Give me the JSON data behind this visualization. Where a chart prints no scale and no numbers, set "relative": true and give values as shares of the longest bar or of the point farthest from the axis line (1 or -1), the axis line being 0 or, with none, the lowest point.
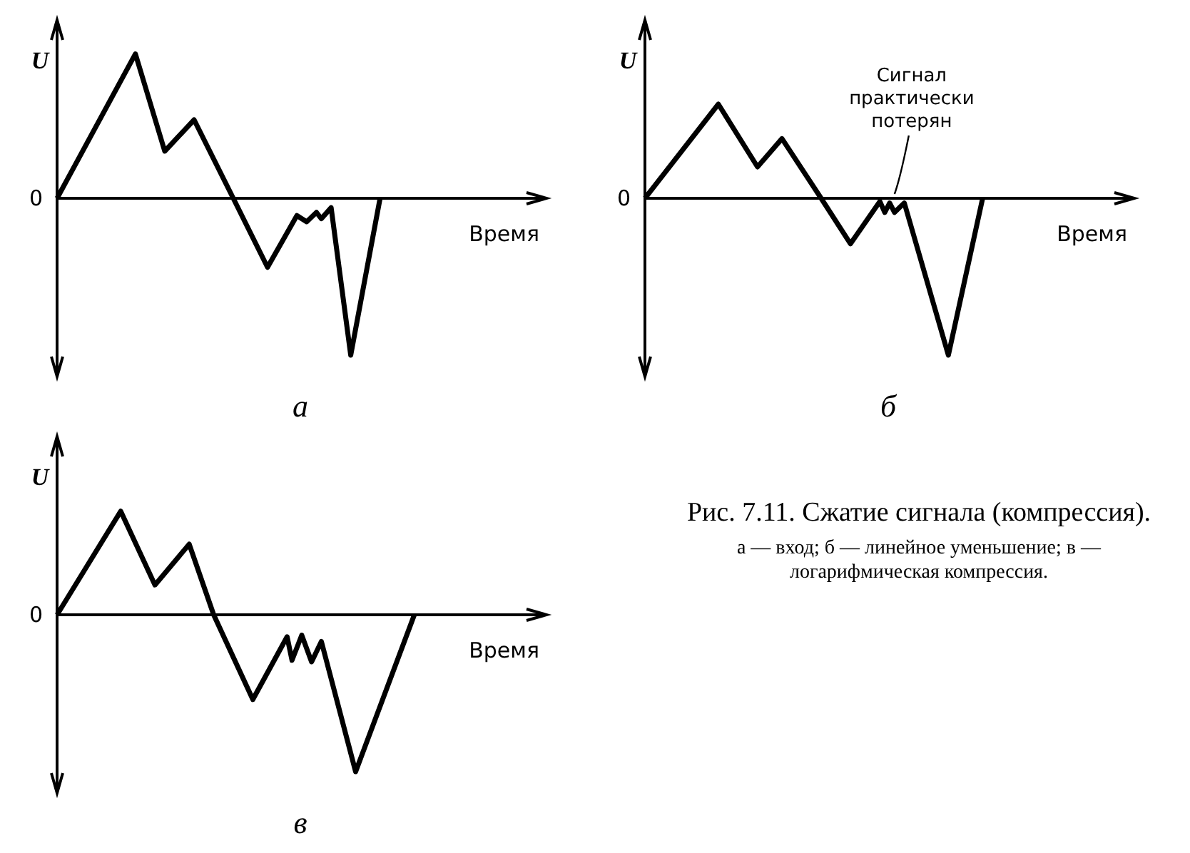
{
  "chart_data": [
    {
      "type": "line",
      "relative": true,
      "title": "а",
      "xlabel": "Время",
      "ylabel": "U",
      "annotations": [
        "0"
      ],
      "categories": [
        null,
        null,
        null,
        null,
        null,
        null,
        null,
        null,
        null,
        null,
        null,
        null,
        null,
        null,
        null,
        null,
        null,
        null,
        null,
        null,
        null,
        null,
        null,
        null,
        null,
        null,
        null,
        null,
        null,
        null,
        null,
        null,
        null,
        null,
        null,
        null,
        null,
        null,
        null,
        null,
        null,
        null,
        null,
        null,
        null,
        null,
        null,
        null,
        null,
        null,
        null,
        null,
        null,
        null,
        null,
        null,
        null,
        null,
        null,
        null,
        null,
        null,
        null,
        null,
        null,
        null,
        null,
        null,
        null,
        null,
        null,
        null,
        null,
        null,
        null,
        null,
        null,
        null,
        null,
        null,
        null,
        null,
        null,
        null,
        null,
        null,
        null,
        null,
        null,
        null,
        null,
        null,
        null,
        null,
        null,
        null,
        null,
        null,
        null,
        null,
        null
      ],
      "series": [
        {
          "color": "#000000",
          "values": [
            0,
            null,
            null,
            null,
            null,
            null,
            null,
            null,
            null,
            null,
            null,
            null,
            null,
            null,
            null,
            null,
            0.92,
            null,
            null,
            null,
            null,
            null,
            0.3,
            null,
            null,
            null,
            null,
            null,
            0.5,
            null,
            null,
            null,
            null,
            null,
            null,
            null,
            0,
            null,
            null,
            null,
            null,
            null,
            null,
            -0.44,
            null,
            null,
            null,
            null,
            null,
            -0.11,
            null,
            -0.15,
            null,
            -0.09,
            -0.13,
            null,
            -0.06,
            null,
            null,
            null,
            -1,
            null,
            null,
            null,
            null,
            null,
            0,
            null,
            null,
            null,
            null,
            null,
            null,
            null,
            null,
            null,
            null,
            null,
            null,
            null,
            null,
            null,
            null,
            null,
            null,
            null,
            null,
            null,
            null,
            null,
            null,
            null,
            null,
            null,
            null,
            null,
            null,
            null,
            null,
            null,
            null
          ]
        }
      ]
    },
    {
      "type": "line",
      "relative": true,
      "title": "б",
      "xlabel": "Время",
      "ylabel": "U",
      "annotations": [
        "0",
        "Сигнал практически потерян"
      ],
      "categories": [
        null,
        null,
        null,
        null,
        null,
        null,
        null,
        null,
        null,
        null,
        null,
        null,
        null,
        null,
        null,
        null,
        null,
        null,
        null,
        null,
        null,
        null,
        null,
        null,
        null,
        null,
        null,
        null,
        null,
        null,
        null,
        null,
        null,
        null,
        null,
        null,
        null,
        null,
        null,
        null,
        null,
        null,
        null,
        null,
        null,
        null,
        null,
        null,
        null,
        null,
        null,
        null,
        null,
        null,
        null,
        null,
        null,
        null,
        null,
        null,
        null,
        null,
        null,
        null,
        null,
        null,
        null,
        null,
        null,
        null,
        null,
        null,
        null,
        null,
        null,
        null,
        null,
        null,
        null,
        null,
        null,
        null,
        null,
        null,
        null,
        null,
        null,
        null,
        null,
        null,
        null,
        null,
        null,
        null,
        null,
        null,
        null,
        null,
        null,
        null,
        null
      ],
      "series": [
        {
          "color": "#000000",
          "values": [
            0,
            null,
            null,
            null,
            null,
            null,
            null,
            null,
            null,
            null,
            null,
            null,
            null,
            null,
            null,
            0.6,
            null,
            null,
            null,
            null,
            null,
            null,
            null,
            0.2,
            null,
            null,
            null,
            null,
            0.38,
            null,
            null,
            null,
            null,
            null,
            null,
            null,
            0,
            null,
            null,
            null,
            null,
            null,
            -0.29,
            null,
            null,
            null,
            null,
            null,
            -0.02,
            -0.09,
            -0.03,
            -0.09,
            null,
            -0.03,
            null,
            null,
            null,
            null,
            null,
            null,
            null,
            null,
            -1,
            null,
            null,
            null,
            null,
            null,
            null,
            0,
            null,
            null,
            null,
            null,
            null,
            null,
            null,
            null,
            null,
            null,
            null,
            null,
            null,
            null,
            null,
            null,
            null,
            null,
            null,
            null,
            null,
            null,
            null,
            null,
            null,
            null,
            null,
            null,
            null,
            null,
            null
          ]
        }
      ]
    },
    {
      "type": "line",
      "relative": true,
      "title": "в",
      "xlabel": "Время",
      "ylabel": "U",
      "annotations": [
        "0"
      ],
      "categories": [
        null,
        null,
        null,
        null,
        null,
        null,
        null,
        null,
        null,
        null,
        null,
        null,
        null,
        null,
        null,
        null,
        null,
        null,
        null,
        null,
        null,
        null,
        null,
        null,
        null,
        null,
        null,
        null,
        null,
        null,
        null,
        null,
        null,
        null,
        null,
        null,
        null,
        null,
        null,
        null,
        null,
        null,
        null,
        null,
        null,
        null,
        null,
        null,
        null,
        null,
        null,
        null,
        null,
        null,
        null,
        null,
        null,
        null,
        null,
        null,
        null,
        null,
        null,
        null,
        null,
        null,
        null,
        null,
        null,
        null,
        null,
        null,
        null,
        null,
        null,
        null,
        null,
        null,
        null,
        null,
        null,
        null,
        null,
        null,
        null,
        null,
        null,
        null,
        null,
        null,
        null,
        null,
        null,
        null,
        null,
        null,
        null,
        null,
        null,
        null,
        null
      ],
      "series": [
        {
          "color": "#000000",
          "values": [
            0,
            null,
            null,
            null,
            null,
            null,
            null,
            null,
            null,
            null,
            null,
            null,
            null,
            0.66,
            null,
            null,
            null,
            null,
            null,
            null,
            0.19,
            null,
            null,
            null,
            null,
            null,
            null,
            0.45,
            null,
            null,
            null,
            null,
            0,
            null,
            null,
            null,
            null,
            null,
            null,
            null,
            -0.54,
            null,
            null,
            null,
            null,
            null,
            null,
            -0.14,
            -0.29,
            null,
            -0.13,
            null,
            -0.3,
            null,
            -0.17,
            null,
            null,
            null,
            null,
            null,
            null,
            -1,
            null,
            null,
            null,
            null,
            null,
            null,
            null,
            null,
            null,
            null,
            null,
            0,
            null,
            null,
            null,
            null,
            null,
            null,
            null,
            null,
            null,
            null,
            null,
            null,
            null,
            null,
            null,
            null,
            null,
            null,
            null,
            null,
            null,
            null,
            null,
            null,
            null,
            null,
            null
          ]
        }
      ]
    },
    {
      "type": "other",
      "title": "Рис. 7.11. Сжатие сигнала (компрессия).",
      "annotations": [
        "а — вход; б — линейное уменьшение; в — логарифмическая компрессия."
      ]
    }
  ]
}
